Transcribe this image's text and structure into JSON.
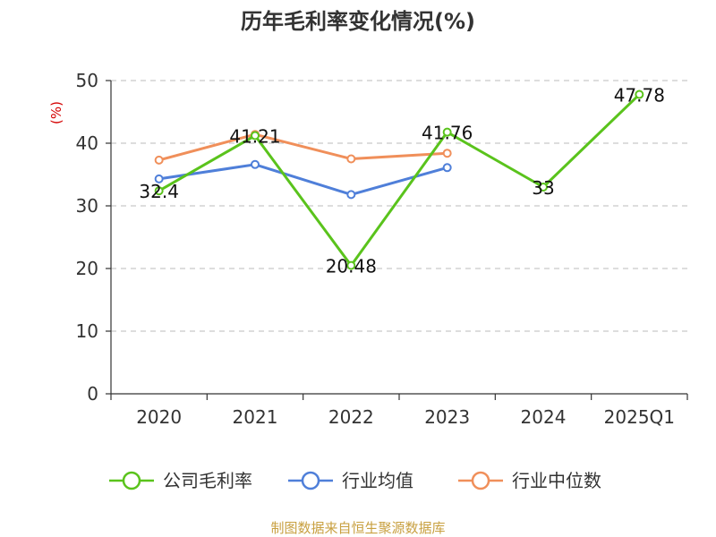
{
  "chart_data": {
    "type": "line",
    "title": "历年毛利率变化情况(%)",
    "ylabel": "(%)",
    "categories": [
      "2020",
      "2021",
      "2022",
      "2023",
      "2024",
      "2025Q1"
    ],
    "ylim": [
      0,
      50
    ],
    "yticks": [
      0,
      10,
      20,
      30,
      40,
      50
    ],
    "grid": true,
    "legend_position": "bottom",
    "series": [
      {
        "name": "公司毛利率",
        "color": "#5ac31c",
        "values": [
          32.4,
          41.21,
          20.48,
          41.76,
          33,
          47.78
        ],
        "labels": [
          "32.4",
          "41.21",
          "20.48",
          "41.76",
          "33",
          "47.78"
        ]
      },
      {
        "name": "行业均值",
        "color": "#4f7fd9",
        "values": [
          34.3,
          36.6,
          31.8,
          36.1,
          null,
          null
        ]
      },
      {
        "name": "行业中位数",
        "color": "#f08f5a",
        "values": [
          37.3,
          41.4,
          37.5,
          38.4,
          null,
          null
        ]
      }
    ],
    "source": "制图数据来自恒生聚源数据库",
    "source_color": "#c8a040",
    "ylabel_color": "#d40000"
  }
}
